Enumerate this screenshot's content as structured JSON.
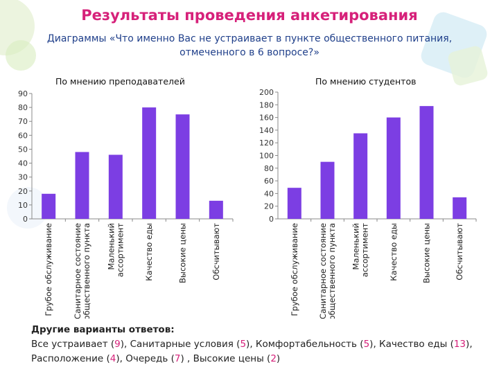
{
  "header": {
    "title": "Результаты проведения анкетирования",
    "subtitle": "Диаграммы «Что именно Вас не устраивает в пункте общественного питания, отмеченного в 6 вопросе?»"
  },
  "colors": {
    "bar": "#7c3ee3",
    "title": "#d6217a",
    "subtitle": "#1f3f8a",
    "accent_number": "#d6217a"
  },
  "chart_data": [
    {
      "type": "bar",
      "title": "По мнению преподавателей",
      "categories": [
        "Грубое обслуживание",
        "Санитарное состояние общественного пункта",
        "Маленький ассортимент",
        "Качество еды",
        "Высокие цены",
        "Обсчитывают"
      ],
      "category_lines": [
        [
          "Грубое обслуживание"
        ],
        [
          "Санитарное состояние",
          "общественного пункта"
        ],
        [
          "Маленький",
          "ассортимент"
        ],
        [
          "Качество еды"
        ],
        [
          "Высокие цены"
        ],
        [
          "Обсчитывают"
        ]
      ],
      "values": [
        18,
        48,
        46,
        80,
        75,
        13
      ],
      "ylim": [
        0,
        90
      ],
      "yticks": [
        0,
        10,
        20,
        30,
        40,
        50,
        60,
        70,
        80,
        90
      ],
      "grid": false
    },
    {
      "type": "bar",
      "title": "По мнению студентов",
      "categories": [
        "Грубое обслуживание",
        "Санитарное состояние общественного пункта",
        "Маленький ассортимент",
        "Качество еды",
        "Высокие цены",
        "Обсчитывают"
      ],
      "category_lines": [
        [
          "Грубое обслуживание"
        ],
        [
          "Санитарное состояние",
          "общественного пункта"
        ],
        [
          "Маленький",
          "ассортимент"
        ],
        [
          "Качество еды"
        ],
        [
          "Высокие цены"
        ],
        [
          "Обсчитывают"
        ]
      ],
      "values": [
        49,
        90,
        135,
        160,
        178,
        34
      ],
      "ylim": [
        0,
        200
      ],
      "yticks": [
        0,
        20,
        40,
        60,
        80,
        100,
        120,
        140,
        160,
        180,
        200
      ],
      "grid": false
    }
  ],
  "footer": {
    "heading": "Другие варианты ответов:",
    "items": [
      {
        "label": "Все устраивает",
        "count": "9",
        "sep": ", "
      },
      {
        "label": "Санитарные условия",
        "count": "5",
        "sep": ", "
      },
      {
        "label": "Комфортабельность",
        "count": "5",
        "sep": ", "
      },
      {
        "label": "Качество еды",
        "count": "13",
        "sep": ","
      },
      {
        "label": "Расположение",
        "count": "4",
        "sep": ", "
      },
      {
        "label": "Очередь",
        "count": "7",
        "sep": " , "
      },
      {
        "label": "Высокие цены",
        "count": "2",
        "sep": ""
      }
    ]
  }
}
